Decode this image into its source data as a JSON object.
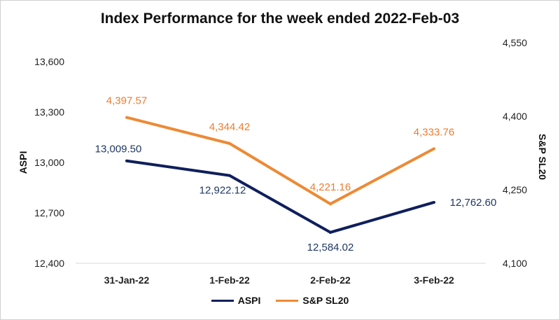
{
  "chart_data": {
    "type": "line",
    "title": "Index Performance for the week ended 2022-Feb-03",
    "categories": [
      "31-Jan-22",
      "1-Feb-22",
      "2-Feb-22",
      "3-Feb-22"
    ],
    "ylabel": "ASPI",
    "y2label": "S&P SL20",
    "ylim": [
      12400,
      13600
    ],
    "yticks": [
      12400,
      12700,
      13000,
      13300,
      13600
    ],
    "ytick_labels": [
      "12,400",
      "12,700",
      "13,000",
      "13,300",
      "13,600"
    ],
    "y2lim": [
      4100,
      4550
    ],
    "y2ticks": [
      4100,
      4250,
      4400,
      4550
    ],
    "y2tick_labels": [
      "4,100",
      "4,250",
      "4,400",
      "4,550"
    ],
    "grid": false,
    "legend_position": "bottom",
    "series": [
      {
        "name": "ASPI",
        "axis": "left",
        "color": "#0f1f5c",
        "label_color": "#1f3864",
        "values": [
          13009.5,
          12922.12,
          12584.02,
          12762.6
        ],
        "labels": [
          "13,009.50",
          "12,922.12",
          "12,584.02",
          "12,762.60"
        ]
      },
      {
        "name": "S&P SL20",
        "axis": "right",
        "color": "#ed8a35",
        "label_color": "#ed7d31",
        "values": [
          4397.57,
          4344.42,
          4221.16,
          4333.76
        ],
        "labels": [
          "4,397.57",
          "4,344.42",
          "4,221.16",
          "4,333.76"
        ]
      }
    ]
  }
}
